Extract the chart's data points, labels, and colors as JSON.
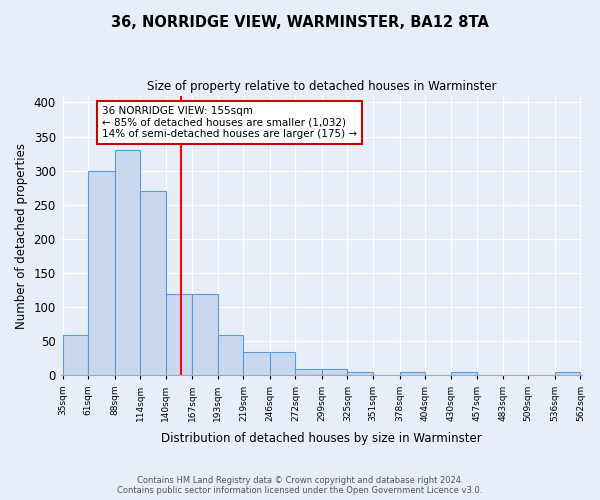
{
  "title": "36, NORRIDGE VIEW, WARMINSTER, BA12 8TA",
  "subtitle": "Size of property relative to detached houses in Warminster",
  "xlabel": "Distribution of detached houses by size in Warminster",
  "ylabel": "Number of detached properties",
  "bin_edges": [
    35,
    61,
    88,
    114,
    140,
    167,
    193,
    219,
    246,
    272,
    299,
    325,
    351,
    378,
    404,
    430,
    457,
    483,
    509,
    536,
    562
  ],
  "bar_heights": [
    60,
    300,
    330,
    270,
    120,
    120,
    60,
    35,
    35,
    10,
    10,
    5,
    0,
    5,
    0,
    5,
    0,
    0,
    0,
    5
  ],
  "bar_color": "#c8d9ef",
  "bar_edge_color": "#5b9bd5",
  "red_line_x": 155,
  "annotation_text": "36 NORRIDGE VIEW: 155sqm\n← 85% of detached houses are smaller (1,032)\n14% of semi-detached houses are larger (175) →",
  "annotation_box_color": "white",
  "annotation_box_edge": "#cc0000",
  "ylim": [
    0,
    410
  ],
  "yticks": [
    0,
    50,
    100,
    150,
    200,
    250,
    300,
    350,
    400
  ],
  "footer_line1": "Contains HM Land Registry data © Crown copyright and database right 2024.",
  "footer_line2": "Contains public sector information licensed under the Open Government Licence v3.0.",
  "background_color": "#e8eef8",
  "plot_bg_color": "#e8eef8",
  "grid_color": "#ffffff"
}
